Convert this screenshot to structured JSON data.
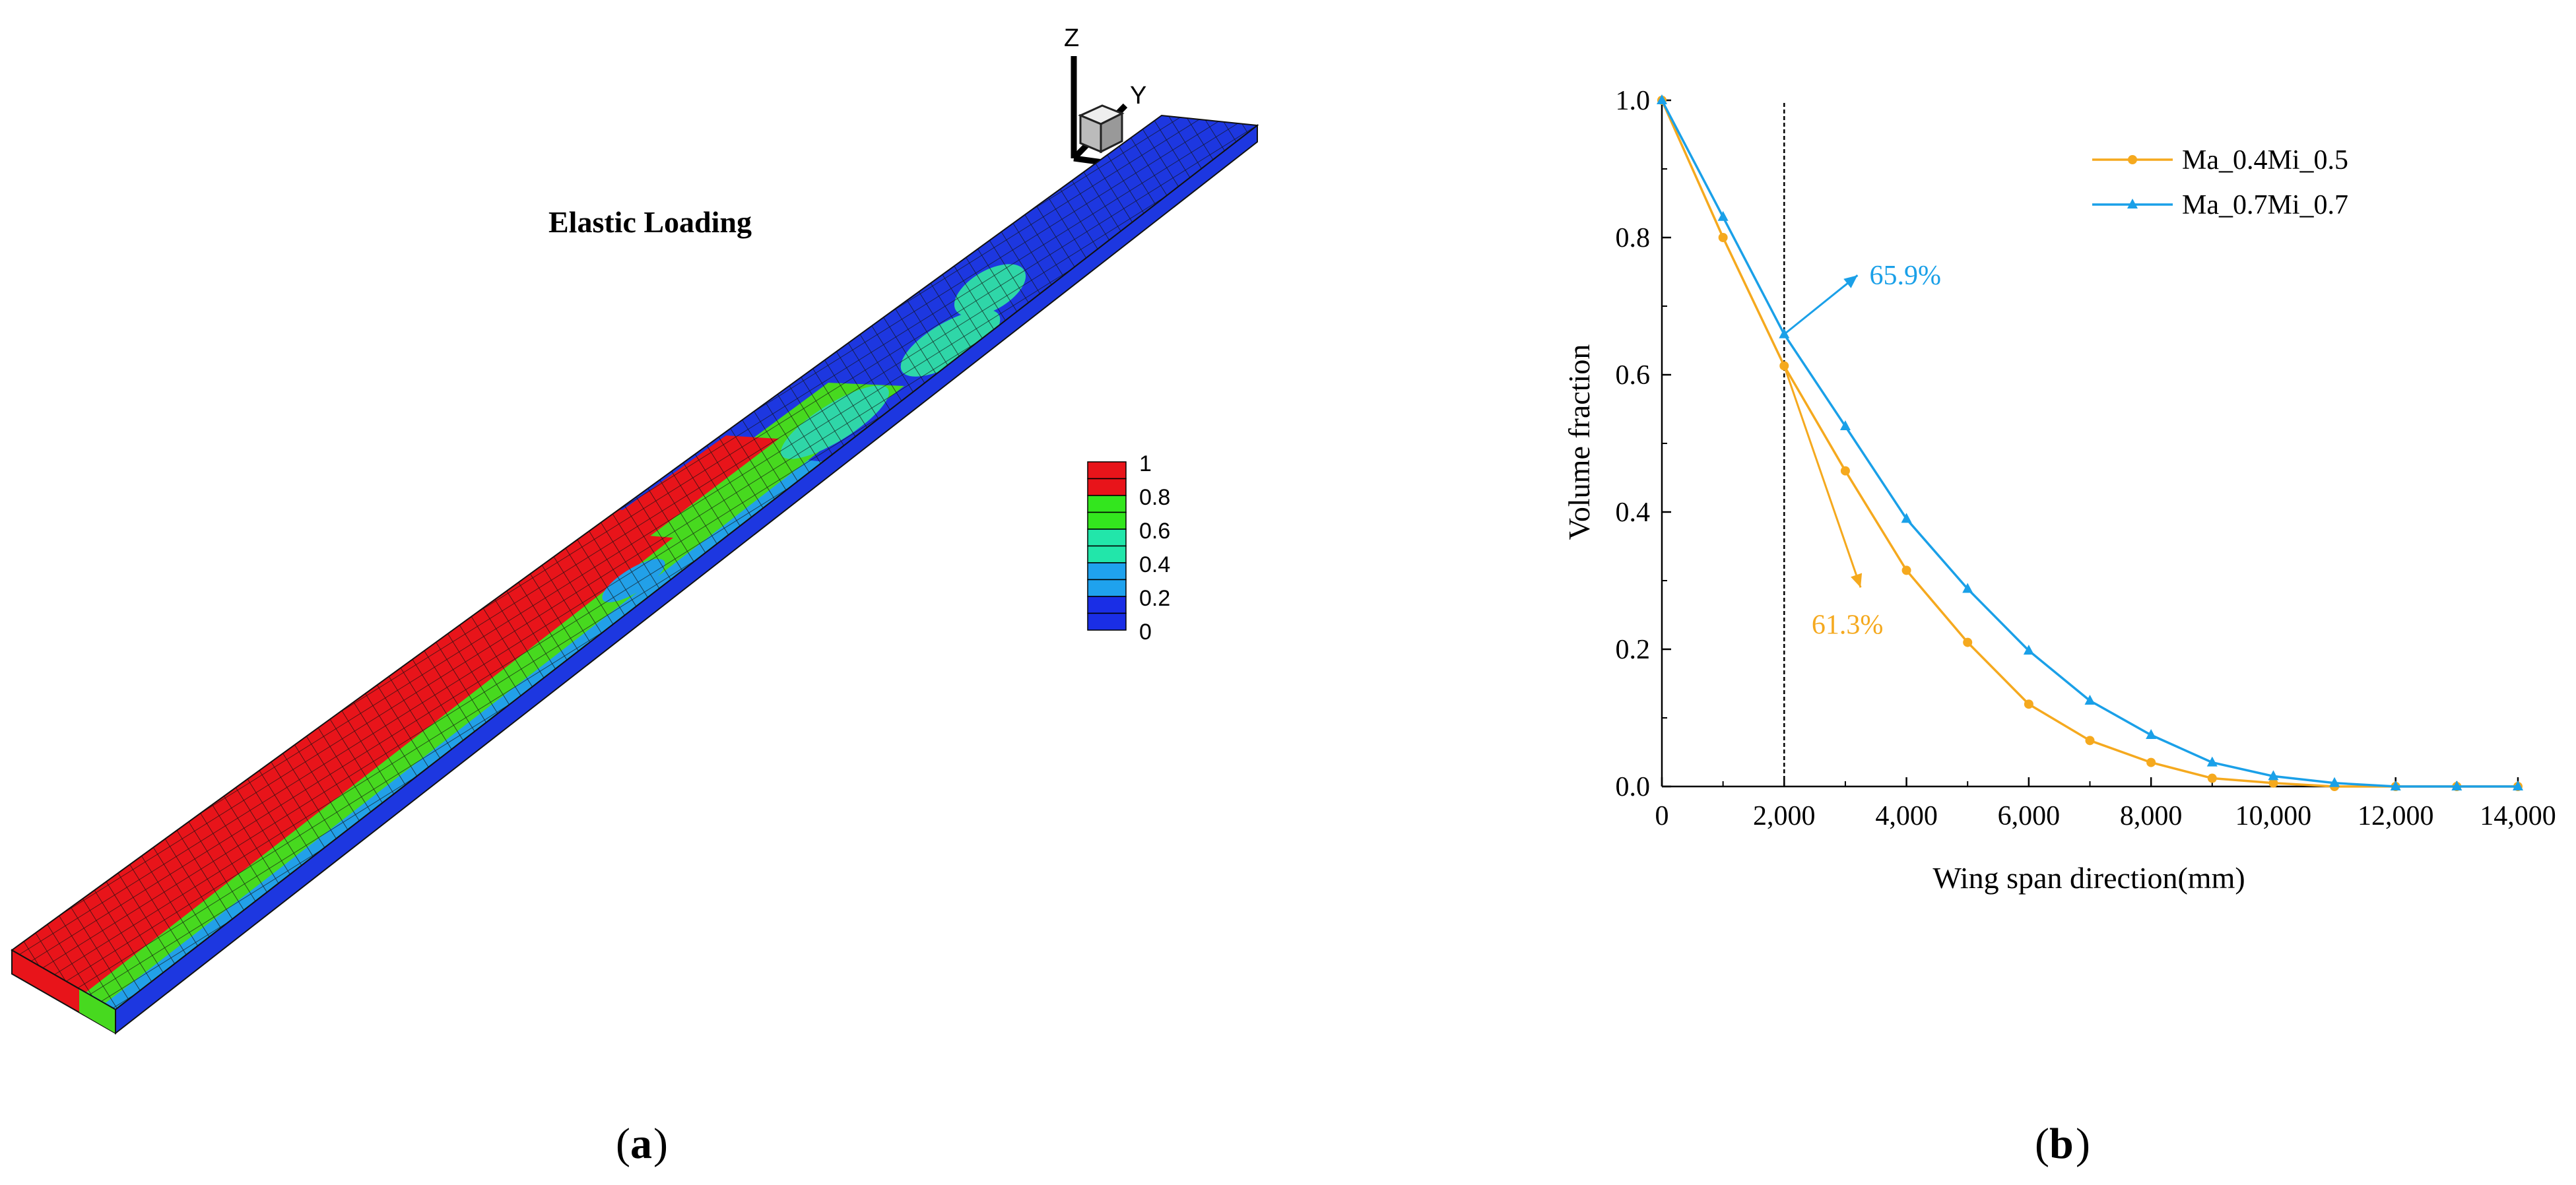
{
  "panel_a": {
    "title": "Elastic Loading",
    "caption_open": "(",
    "caption_letter": "a",
    "caption_close": ")",
    "axes": {
      "z": "Z",
      "y": "Y"
    },
    "colorbar": {
      "labels": [
        "1",
        "0.8",
        "0.6",
        "0.4",
        "0.2",
        "0"
      ],
      "colors": [
        "#e8141a",
        "#e8141a",
        "#33e61e",
        "#33e61e",
        "#22e6aa",
        "#22e6aa",
        "#1fa2ee",
        "#1fa2ee",
        "#1a2ee6",
        "#1a2ee6"
      ]
    },
    "wing_colors": {
      "red": "#e8141a",
      "green": "#47d91f",
      "teal": "#2fd6a8",
      "blue_light": "#22a0e8",
      "blue": "#1d37e0",
      "mesh": "#1a1a1a"
    }
  },
  "panel_b": {
    "caption_open": "(",
    "caption_letter": "b",
    "caption_close": ")"
  },
  "chart_data": {
    "type": "line",
    "xlabel": "Wing span direction(mm)",
    "ylabel": "Volume fraction",
    "xlim": [
      0,
      14000
    ],
    "ylim": [
      0,
      1.0
    ],
    "xticks": [
      "0",
      "2,000",
      "4,000",
      "6,000",
      "8,000",
      "10,000",
      "12,000",
      "14,000"
    ],
    "yticks": [
      "0.0",
      "0.2",
      "0.4",
      "0.6",
      "0.8",
      "1.0"
    ],
    "xtick_values": [
      0,
      2000,
      4000,
      6000,
      8000,
      10000,
      12000,
      14000
    ],
    "ytick_values": [
      0,
      0.2,
      0.4,
      0.6,
      0.8,
      1.0
    ],
    "legend_position": "top-right",
    "grid": false,
    "series": [
      {
        "name": "Ma_0.4Mi_0.5",
        "color": "#f5a91e",
        "marker": "circle",
        "x": [
          0,
          1000,
          2000,
          3000,
          4000,
          5000,
          6000,
          7000,
          8000,
          9000,
          10000,
          11000,
          12000,
          13000,
          14000
        ],
        "y": [
          1.0,
          0.8,
          0.613,
          0.46,
          0.315,
          0.21,
          0.12,
          0.067,
          0.035,
          0.012,
          0.005,
          0.0,
          0.0,
          0.0,
          0.0
        ]
      },
      {
        "name": "Ma_0.7Mi_0.7",
        "color": "#1aa0e8",
        "marker": "triangle",
        "x": [
          0,
          1000,
          2000,
          3000,
          4000,
          5000,
          6000,
          7000,
          8000,
          9000,
          10000,
          11000,
          12000,
          13000,
          14000
        ],
        "y": [
          1.0,
          0.83,
          0.659,
          0.525,
          0.39,
          0.288,
          0.198,
          0.125,
          0.075,
          0.035,
          0.015,
          0.005,
          0.0,
          0.0,
          0.0
        ]
      }
    ],
    "reference_line": {
      "x": 2000,
      "style": "dashed"
    },
    "annotations": [
      {
        "text": "65.9%",
        "color": "#1aa0e8",
        "from": [
          2000,
          0.659
        ],
        "to": [
          3200,
          0.745
        ]
      },
      {
        "text": "61.3%",
        "color": "#f5a91e",
        "from": [
          2000,
          0.613
        ],
        "to": [
          3250,
          0.29
        ]
      }
    ]
  }
}
